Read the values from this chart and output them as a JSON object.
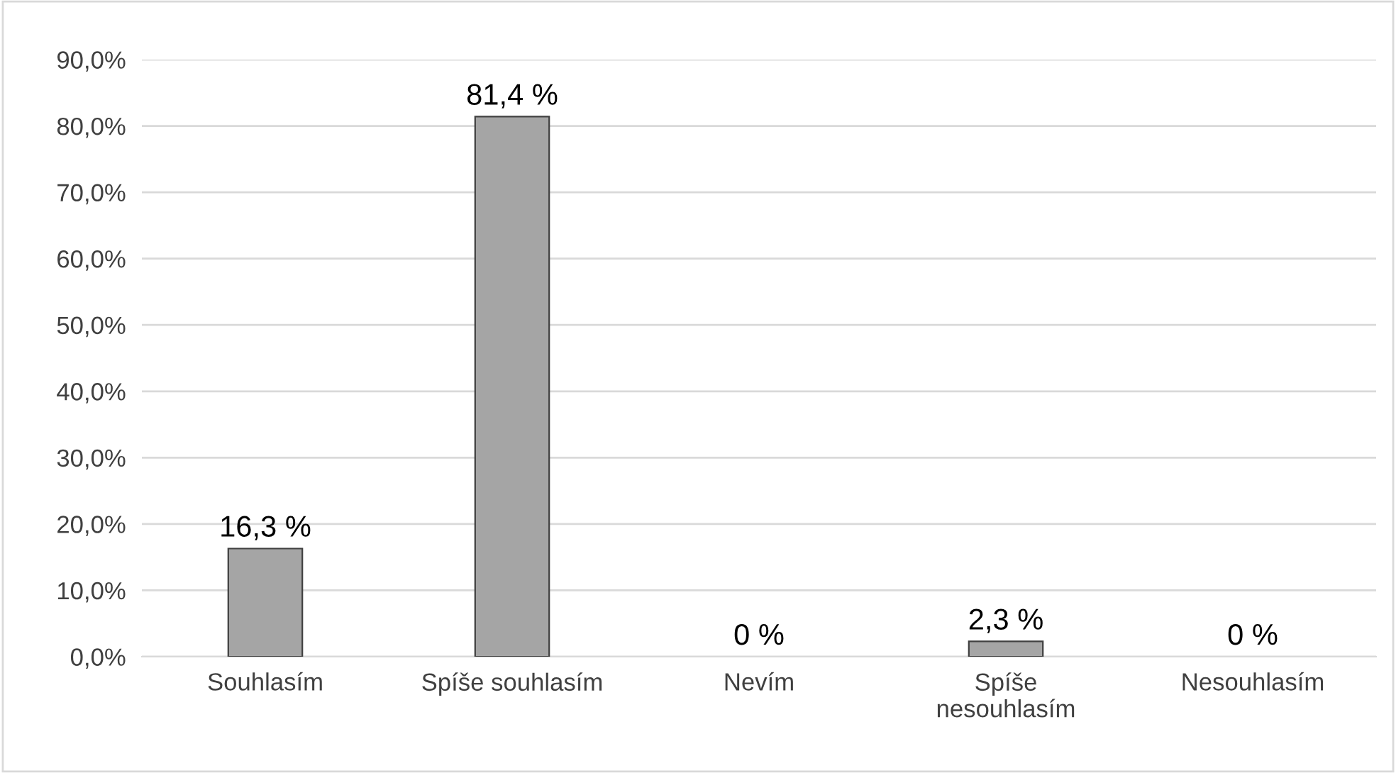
{
  "chart_data": {
    "type": "bar",
    "categories": [
      "Souhlasím",
      "Spíše souhlasím",
      "Nevím",
      "Spíše\nnesouhlasím",
      "Nesouhlasím"
    ],
    "values": [
      16.3,
      81.4,
      0,
      2.3,
      0
    ],
    "value_labels": [
      "16,3 %",
      "81,4 %",
      "0 %",
      "2,3 %",
      "0 %"
    ],
    "color": "#a5a5a5",
    "ylim": [
      0,
      90
    ],
    "yticks": [
      {
        "value": 0,
        "label": "0,0%"
      },
      {
        "value": 10,
        "label": "10,0%"
      },
      {
        "value": 20,
        "label": "20,0%"
      },
      {
        "value": 30,
        "label": "30,0%"
      },
      {
        "value": 40,
        "label": "40,0%"
      },
      {
        "value": 50,
        "label": "50,0%"
      },
      {
        "value": 60,
        "label": "60,0%"
      },
      {
        "value": 70,
        "label": "70,0%"
      },
      {
        "value": 80,
        "label": "80,0%"
      },
      {
        "value": 90,
        "label": "90,0%"
      }
    ],
    "grid": "y"
  }
}
